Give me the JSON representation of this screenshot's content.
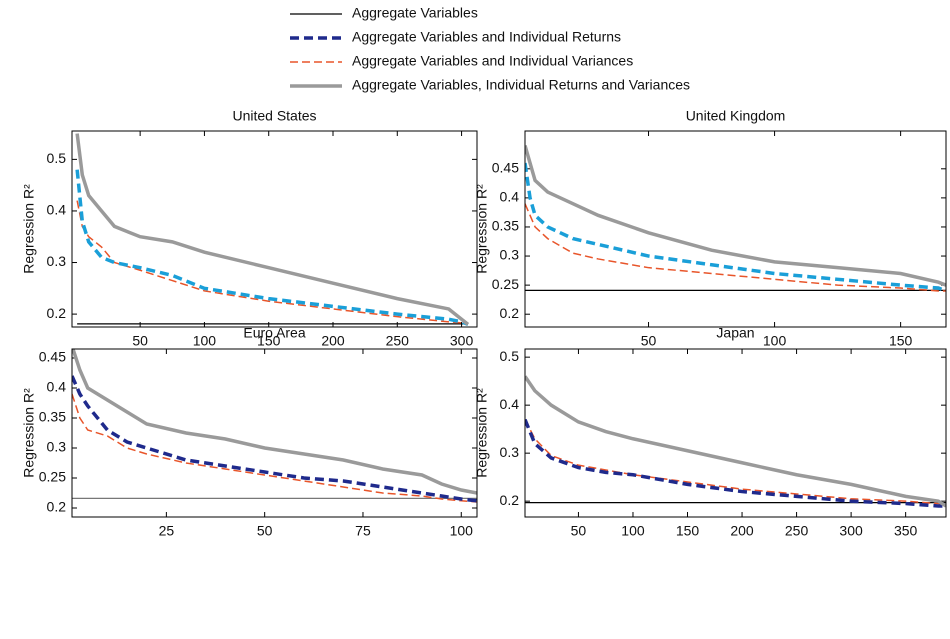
{
  "legend": [
    {
      "name": "Aggregate Variables",
      "color": "#000000",
      "width": 1.3,
      "dash": "none"
    },
    {
      "name": "Aggregate Variables and Individual Returns",
      "color": "#1f2a8c",
      "width": 3.5,
      "dash": "9,5"
    },
    {
      "name": "Aggregate Variables and Individual Variances",
      "color": "#e8552a",
      "width": 1.5,
      "dash": "8,4"
    },
    {
      "name": "Aggregate Variables, Individual Returns and Variances",
      "color": "#9a9a9a",
      "width": 3.5,
      "dash": "none"
    }
  ],
  "chart_data": [
    {
      "type": "line",
      "title": "United States",
      "ylabel": "Regression R²",
      "x": [
        1,
        5,
        10,
        20,
        30,
        50,
        75,
        100,
        150,
        200,
        250,
        290,
        300,
        305
      ],
      "xlim": [
        -3,
        312
      ],
      "xticks": [
        50,
        100,
        150,
        200,
        250,
        300
      ],
      "ylim": [
        0.175,
        0.555
      ],
      "yticks": [
        0.2,
        0.3,
        0.4,
        0.5
      ],
      "series": [
        {
          "color": "#000000",
          "width": 1.3,
          "dash": "none",
          "values": [
            0.181,
            0.181,
            0.181,
            0.181,
            0.181,
            0.181,
            0.181,
            0.181,
            0.181,
            0.181,
            0.181,
            0.181,
            0.181,
            0.181
          ]
        },
        {
          "color": "#1a9fd8",
          "width": 3.5,
          "dash": "9,5",
          "values": [
            0.48,
            0.38,
            0.34,
            0.31,
            0.3,
            0.29,
            0.275,
            0.25,
            0.23,
            0.215,
            0.2,
            0.19,
            0.185,
            0.18
          ]
        },
        {
          "color": "#e8552a",
          "width": 1.5,
          "dash": "8,4",
          "values": [
            0.42,
            0.37,
            0.35,
            0.33,
            0.3,
            0.285,
            0.265,
            0.245,
            0.225,
            0.21,
            0.195,
            0.185,
            0.183,
            0.18
          ]
        },
        {
          "color": "#9a9a9a",
          "width": 3.5,
          "dash": "none",
          "values": [
            0.55,
            0.47,
            0.43,
            0.4,
            0.37,
            0.35,
            0.34,
            0.32,
            0.29,
            0.26,
            0.23,
            0.21,
            0.19,
            0.18
          ]
        }
      ]
    },
    {
      "type": "line",
      "title": "United Kingdom",
      "ylabel": "Regression R²",
      "x": [
        1,
        3,
        5,
        10,
        20,
        30,
        50,
        75,
        100,
        125,
        150,
        165,
        168
      ],
      "xlim": [
        1,
        168
      ],
      "xticks": [
        50,
        100,
        150
      ],
      "ylim": [
        0.178,
        0.515
      ],
      "yticks": [
        0.2,
        0.25,
        0.3,
        0.35,
        0.4,
        0.45
      ],
      "series": [
        {
          "color": "#000000",
          "width": 1.3,
          "dash": "none",
          "values": [
            0.241,
            0.241,
            0.241,
            0.241,
            0.241,
            0.241,
            0.241,
            0.241,
            0.241,
            0.241,
            0.241,
            0.241,
            0.241
          ]
        },
        {
          "color": "#1a9fd8",
          "width": 3.5,
          "dash": "9,5",
          "values": [
            0.46,
            0.4,
            0.37,
            0.35,
            0.33,
            0.32,
            0.3,
            0.285,
            0.27,
            0.26,
            0.25,
            0.245,
            0.24
          ]
        },
        {
          "color": "#e8552a",
          "width": 1.5,
          "dash": "8,4",
          "values": [
            0.39,
            0.37,
            0.35,
            0.33,
            0.305,
            0.295,
            0.28,
            0.27,
            0.26,
            0.25,
            0.245,
            0.24,
            0.24
          ]
        },
        {
          "color": "#9a9a9a",
          "width": 3.5,
          "dash": "none",
          "values": [
            0.49,
            0.46,
            0.43,
            0.41,
            0.39,
            0.37,
            0.34,
            0.31,
            0.29,
            0.28,
            0.27,
            0.255,
            0.25
          ]
        }
      ]
    },
    {
      "type": "line",
      "title": "Euro Area",
      "ylabel": "Regression R²",
      "x": [
        1,
        3,
        5,
        10,
        15,
        20,
        30,
        40,
        50,
        60,
        70,
        80,
        90,
        95,
        100,
        104
      ],
      "xlim": [
        1,
        104
      ],
      "xticks": [
        25,
        50,
        75,
        100
      ],
      "ylim": [
        0.185,
        0.465
      ],
      "yticks": [
        0.2,
        0.25,
        0.3,
        0.35,
        0.4,
        0.45
      ],
      "series": [
        {
          "color": "#777777",
          "width": 1.3,
          "dash": "none",
          "values": [
            0.216,
            0.216,
            0.216,
            0.216,
            0.216,
            0.216,
            0.216,
            0.216,
            0.216,
            0.216,
            0.216,
            0.216,
            0.216,
            0.216,
            0.216,
            0.216
          ]
        },
        {
          "color": "#1f2a8c",
          "width": 3.5,
          "dash": "9,5",
          "values": [
            0.42,
            0.39,
            0.37,
            0.33,
            0.31,
            0.3,
            0.28,
            0.27,
            0.26,
            0.25,
            0.245,
            0.235,
            0.225,
            0.22,
            0.215,
            0.212
          ]
        },
        {
          "color": "#e8552a",
          "width": 1.5,
          "dash": "8,4",
          "values": [
            0.39,
            0.35,
            0.33,
            0.32,
            0.3,
            0.29,
            0.275,
            0.265,
            0.255,
            0.245,
            0.235,
            0.225,
            0.22,
            0.215,
            0.212,
            0.21
          ]
        },
        {
          "color": "#9a9a9a",
          "width": 3.5,
          "dash": "none",
          "values": [
            0.47,
            0.43,
            0.4,
            0.38,
            0.36,
            0.34,
            0.325,
            0.315,
            0.3,
            0.29,
            0.28,
            0.265,
            0.255,
            0.24,
            0.23,
            0.225
          ]
        }
      ]
    },
    {
      "type": "line",
      "title": "Japan",
      "ylabel": "Regression R²",
      "x": [
        1,
        10,
        25,
        50,
        75,
        100,
        150,
        200,
        250,
        300,
        350,
        380,
        387
      ],
      "xlim": [
        1,
        387
      ],
      "xticks": [
        50,
        100,
        150,
        200,
        250,
        300,
        350
      ],
      "ylim": [
        0.167,
        0.517
      ],
      "yticks": [
        0.2,
        0.3,
        0.4,
        0.5
      ],
      "series": [
        {
          "color": "#000000",
          "width": 1.3,
          "dash": "none",
          "values": [
            0.197,
            0.197,
            0.197,
            0.197,
            0.197,
            0.197,
            0.197,
            0.197,
            0.197,
            0.197,
            0.197,
            0.197,
            0.197
          ]
        },
        {
          "color": "#1f2a8c",
          "width": 3.5,
          "dash": "9,5",
          "values": [
            0.37,
            0.32,
            0.29,
            0.27,
            0.26,
            0.255,
            0.235,
            0.22,
            0.21,
            0.2,
            0.195,
            0.19,
            0.19
          ]
        },
        {
          "color": "#e8552a",
          "width": 1.5,
          "dash": "8,4",
          "values": [
            0.37,
            0.33,
            0.295,
            0.275,
            0.265,
            0.255,
            0.24,
            0.225,
            0.215,
            0.205,
            0.2,
            0.195,
            0.19
          ]
        },
        {
          "color": "#9a9a9a",
          "width": 3.5,
          "dash": "none",
          "values": [
            0.46,
            0.43,
            0.4,
            0.365,
            0.345,
            0.33,
            0.305,
            0.28,
            0.255,
            0.235,
            0.21,
            0.2,
            0.19
          ]
        }
      ]
    }
  ]
}
